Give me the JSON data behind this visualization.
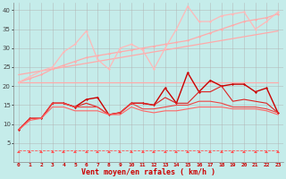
{
  "title": "",
  "xlabel": "Vent moyen/en rafales ( km/h )",
  "ylabel": "",
  "bg_color": "#c5ecea",
  "grid_color": "#b0b0b0",
  "x": [
    0,
    1,
    2,
    3,
    4,
    5,
    6,
    7,
    8,
    9,
    10,
    11,
    12,
    13,
    14,
    15,
    16,
    17,
    18,
    19,
    20,
    21,
    22,
    23
  ],
  "series": [
    {
      "y": [
        21,
        21,
        21,
        21,
        21,
        21,
        21,
        21,
        21,
        21,
        21,
        21,
        21,
        21,
        21,
        21,
        21,
        21,
        21,
        21,
        21,
        21,
        21,
        21
      ],
      "color": "#ffaaaa",
      "marker": null,
      "lw": 0.9,
      "ls": "-"
    },
    {
      "y": [
        23,
        23.5,
        24,
        24.5,
        25,
        25.5,
        26,
        26.5,
        27,
        27.5,
        28,
        28.5,
        29,
        29.5,
        30,
        30.5,
        31,
        31.5,
        32,
        32.5,
        33,
        33.5,
        34,
        34.5
      ],
      "color": "#ffaaaa",
      "marker": null,
      "lw": 0.9,
      "ls": "-"
    },
    {
      "y": [
        21,
        22,
        23,
        24.5,
        25.5,
        26.5,
        27.5,
        28,
        28.5,
        29,
        29.5,
        30,
        30.5,
        31,
        31.5,
        32,
        33,
        34,
        35,
        36,
        37,
        37.5,
        38,
        39
      ],
      "color": "#ffaaaa",
      "marker": "D",
      "lw": 0.9,
      "ls": "-"
    },
    {
      "y": [
        21,
        22.5,
        24,
        25,
        29,
        31,
        34.5,
        27,
        24.5,
        30,
        31,
        29.5,
        24.5,
        30,
        35,
        41,
        37,
        37,
        38.5,
        39,
        39.5,
        35,
        37,
        39.5
      ],
      "color": "#ffb8b8",
      "marker": "D",
      "lw": 0.9,
      "ls": "-"
    },
    {
      "y": [
        8.5,
        11.5,
        11.5,
        15.5,
        15.5,
        14.5,
        16.5,
        17,
        12.5,
        13,
        15.5,
        15.5,
        15,
        19.5,
        15.5,
        23.5,
        18.5,
        21.5,
        20,
        20.5,
        20.5,
        18.5,
        19.5,
        13
      ],
      "color": "#cc0000",
      "marker": "D",
      "lw": 1.0,
      "ls": "-"
    },
    {
      "y": [
        8.5,
        11.5,
        11.5,
        15.5,
        15.5,
        14.5,
        15.5,
        14.5,
        12.5,
        13,
        15.5,
        15.5,
        15,
        17,
        15.5,
        15.5,
        18.5,
        18.5,
        20,
        16,
        16.5,
        16,
        15.5,
        13
      ],
      "color": "#dd2222",
      "marker": null,
      "lw": 0.8,
      "ls": "-"
    },
    {
      "y": [
        8.5,
        11.5,
        11.5,
        15.5,
        15.5,
        14.5,
        14.5,
        14.5,
        12.5,
        13,
        15.5,
        14,
        14,
        14.5,
        15,
        15,
        16,
        16,
        15.5,
        14.5,
        14.5,
        14.5,
        14,
        13
      ],
      "color": "#ee4444",
      "marker": null,
      "lw": 0.8,
      "ls": "-"
    },
    {
      "y": [
        8.5,
        11,
        11.5,
        14.5,
        14.5,
        13.5,
        13.5,
        13.5,
        12.5,
        12.5,
        14.5,
        13.5,
        13,
        13.5,
        13.5,
        14,
        14.5,
        14.5,
        14.5,
        14,
        14,
        14,
        13.5,
        12.5
      ],
      "color": "#ff6666",
      "marker": null,
      "lw": 0.8,
      "ls": "-"
    },
    {
      "y": [
        3,
        3,
        3,
        3,
        3,
        3,
        3,
        3,
        3,
        3,
        3,
        3,
        3,
        3,
        3,
        3,
        3,
        3,
        3,
        3,
        3,
        3,
        3,
        3
      ],
      "color": "#ff5555",
      "marker": "CARETLEFT",
      "lw": 0.6,
      "ls": "--"
    }
  ],
  "ylim": [
    0,
    42
  ],
  "yticks": [
    5,
    10,
    15,
    20,
    25,
    30,
    35,
    40
  ],
  "xlim": [
    -0.5,
    23.5
  ],
  "xticks": [
    0,
    1,
    2,
    3,
    4,
    5,
    6,
    7,
    8,
    9,
    10,
    11,
    12,
    13,
    14,
    15,
    16,
    17,
    18,
    19,
    20,
    21,
    22,
    23
  ]
}
